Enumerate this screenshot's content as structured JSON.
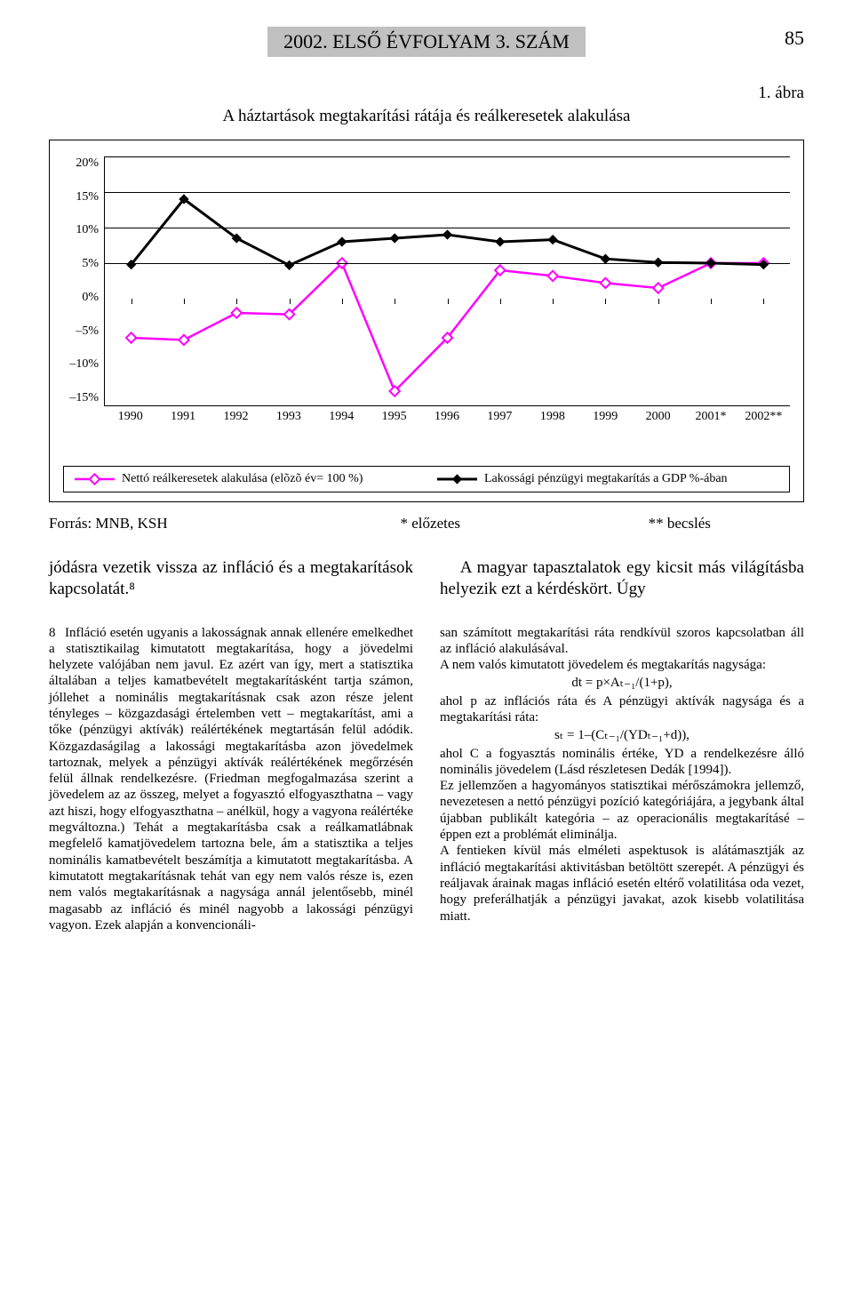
{
  "header": {
    "banner": "2002. ELSŐ ÉVFOLYAM 3. SZÁM",
    "page_number": "85"
  },
  "figure": {
    "label": "1. ábra",
    "title": "A háztartások megtakarítási rátája és reálkeresetek alakulása",
    "y_ticks": [
      "20%",
      "15%",
      "10%",
      "5%",
      "0%",
      "–5%",
      "–10%",
      "–15%"
    ],
    "ylim": [
      -15,
      20
    ],
    "x_labels": [
      "1990",
      "1991",
      "1992",
      "1993",
      "1994",
      "1995",
      "1996",
      "1997",
      "1998",
      "1999",
      "2000",
      "2001*",
      "2002**"
    ],
    "series": [
      {
        "name": "Nettó reálkeresetek alakulása (elõzõ év= 100 %)",
        "color": "#ff00ff",
        "stroke_width": 2.5,
        "marker": "diamond-open",
        "values": [
          -5.5,
          -5.8,
          -2.0,
          -2.2,
          5.0,
          -13.0,
          -5.5,
          4.0,
          3.2,
          2.2,
          1.5,
          5.0,
          5.0
        ]
      },
      {
        "name": "Lakossági pénzügyi megtakarítás a GDP %-ában",
        "color": "#000000",
        "stroke_width": 3,
        "marker": "diamond-solid",
        "values": [
          4.8,
          14.0,
          8.5,
          4.7,
          8.0,
          8.5,
          9.0,
          8.0,
          8.3,
          5.6,
          5.1,
          5.0,
          4.8
        ]
      }
    ],
    "background_color": "#ffffff"
  },
  "legend": {
    "item1": "Nettó reálkeresetek alakulása (elõzõ év= 100 %)",
    "item2": "Lakossági pénzügyi megtakarítás a GDP %-ában"
  },
  "source": {
    "left": "Forrás: MNB, KSH",
    "mid": "* előzetes",
    "right": "** becslés"
  },
  "body": {
    "left": "jódásra vezetik vissza az infláció és a megtakarítások kapcsolatát.⁸",
    "right": "A magyar tapasztalatok egy kicsit más világításba helyezik ezt a kérdéskört. Úgy"
  },
  "footnote": {
    "num": "8",
    "col1": "Infláció esetén ugyanis a lakosságnak annak ellenére emelkedhet a statisztikailag kimutatott megtakarítása, hogy a jövedelmi helyzete valójában nem javul. Ez azért van így, mert a statisztika általában a teljes kamatbevételt megtakarításként tartja számon, jóllehet a nominális megtakarításnak csak azon része jelent tényleges – közgazdasági értelemben vett – megtakarítást, ami a tőke (pénzügyi aktívák) reálértékének megtartásán felül adódik. Közgazdaságilag a lakossági megtakarításba azon jövedelmek tartoznak, melyek a pénzügyi aktívák reálértékének megőrzésén felül állnak rendelkezésre. (Friedman megfogalmazása szerint a jövedelem az az összeg, melyet a fogyasztó elfogyaszthatna – vagy azt hiszi, hogy elfogyaszthatna – anélkül, hogy a vagyona reálértéke megváltozna.) Tehát a megtakarításba csak a reálkamatlábnak megfelelő kamatjövedelem tartozna bele, ám a statisztika a teljes nominális kamatbevételt beszámítja a kimutatott megtakarításba. A kimutatott megtakarításnak tehát van egy nem valós része is, ezen nem valós megtakarításnak a nagysága annál jelentősebb, minél magasabb az infláció és minél nagyobb a lakossági pénzügyi vagyon. Ezek alapján a konvencionáli-",
    "col2a": "san számított megtakarítási ráta rendkívül szoros kapcsolatban áll az infláció alakulásával.",
    "col2b": "A nem valós kimutatott jövedelem és megtakarítás nagysága:",
    "formula1": "dt = p×Aₜ₋₁/(1+p),",
    "col2c": "ahol p az inflációs ráta és A pénzügyi aktívák nagysága és a megtakarítási ráta:",
    "formula2": "sₜ = 1–(Cₜ₋₁/(YDₜ₋₁+d)),",
    "col2d": "ahol C a fogyasztás nominális értéke, YD a rendelkezésre álló nominális jövedelem (Lásd részletesen Dedák [1994]).",
    "col2e": "Ez jellemzően a hagyományos statisztikai mérőszámokra jellemző, nevezetesen a nettó pénzügyi pozíció kategóriájára, a jegybank által újabban publikált kategória – az operacionális megtakarításé – éppen ezt a problémát eliminálja.",
    "col2f": "A fentieken kívül más elméleti aspektusok is alátámasztják az infláció megtakarítási aktivitásban betöltött szerepét. A pénzügyi és reáljavak árainak magas infláció esetén eltérő volatilitása oda vezet, hogy preferálhatják a pénzügyi javakat, azok kisebb volatilitása miatt."
  }
}
